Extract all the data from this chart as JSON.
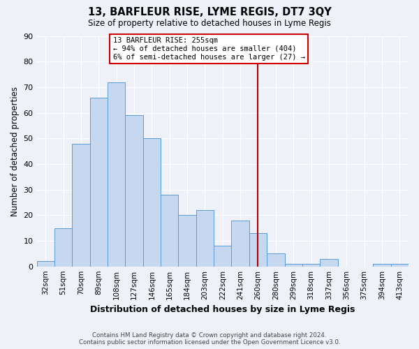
{
  "title": "13, BARFLEUR RISE, LYME REGIS, DT7 3QY",
  "subtitle": "Size of property relative to detached houses in Lyme Regis",
  "xlabel": "Distribution of detached houses by size in Lyme Regis",
  "ylabel": "Number of detached properties",
  "categories": [
    "32sqm",
    "51sqm",
    "70sqm",
    "89sqm",
    "108sqm",
    "127sqm",
    "146sqm",
    "165sqm",
    "184sqm",
    "203sqm",
    "222sqm",
    "241sqm",
    "260sqm",
    "280sqm",
    "299sqm",
    "318sqm",
    "337sqm",
    "356sqm",
    "375sqm",
    "394sqm",
    "413sqm"
  ],
  "values": [
    2,
    15,
    48,
    66,
    72,
    59,
    50,
    28,
    20,
    22,
    8,
    18,
    13,
    5,
    1,
    1,
    3,
    0,
    0,
    1,
    1
  ],
  "bar_color": "#c5d8f0",
  "bar_edge_color": "#5b9bd5",
  "bar_width": 1.0,
  "property_label": "13 BARFLEUR RISE: 255sqm",
  "annotation_line1": "← 94% of detached houses are smaller (404)",
  "annotation_line2": "6% of semi-detached houses are larger (27) →",
  "vline_x_category": "260sqm",
  "vline_color": "#aa0000",
  "ylim": [
    0,
    90
  ],
  "yticks": [
    0,
    10,
    20,
    30,
    40,
    50,
    60,
    70,
    80,
    90
  ],
  "footer_line1": "Contains HM Land Registry data © Crown copyright and database right 2024.",
  "footer_line2": "Contains public sector information licensed under the Open Government Licence v3.0.",
  "background_color": "#eef2f8",
  "plot_bg_color": "#eef2f8",
  "grid_color": "#ffffff",
  "annotation_box_color": "#ffffff",
  "annotation_box_edge": "#cc0000"
}
